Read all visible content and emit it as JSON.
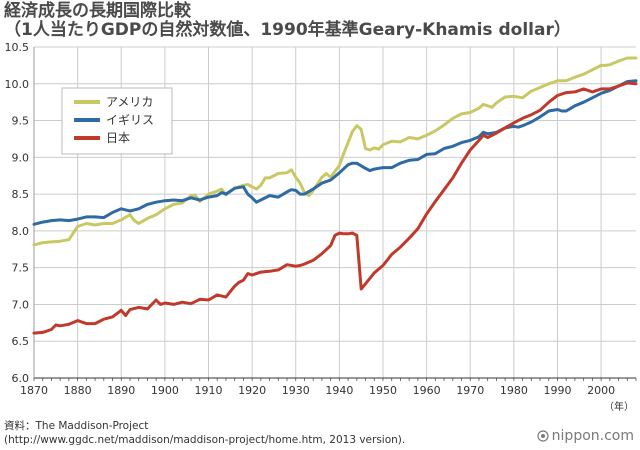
{
  "header": {
    "title": "経済成長の長期国際比較",
    "subtitle": "（1人当たりGDPの自然対数値、1990年基準Geary-Khamis dollar）"
  },
  "chart_data": {
    "type": "line",
    "xlabel_unit": "（年）",
    "xlim": [
      1870,
      2008
    ],
    "ylim": [
      6.0,
      10.5
    ],
    "x_ticks": [
      1870,
      1880,
      1890,
      1900,
      1910,
      1920,
      1930,
      1940,
      1950,
      1960,
      1970,
      1980,
      1990,
      2000
    ],
    "y_ticks": [
      "6.0",
      "6.5",
      "7.0",
      "7.5",
      "8.0",
      "8.5",
      "9.0",
      "9.5",
      "10.0",
      "10.5"
    ],
    "grid": true,
    "legend_position": "top-left",
    "series": [
      {
        "name": "アメリカ",
        "color": "#c8c865",
        "points": [
          [
            1870,
            7.81
          ],
          [
            1872,
            7.84
          ],
          [
            1874,
            7.85
          ],
          [
            1876,
            7.86
          ],
          [
            1878,
            7.88
          ],
          [
            1880,
            8.06
          ],
          [
            1882,
            8.1
          ],
          [
            1884,
            8.08
          ],
          [
            1886,
            8.1
          ],
          [
            1888,
            8.1
          ],
          [
            1890,
            8.15
          ],
          [
            1892,
            8.22
          ],
          [
            1893,
            8.14
          ],
          [
            1894,
            8.1
          ],
          [
            1896,
            8.17
          ],
          [
            1898,
            8.22
          ],
          [
            1900,
            8.3
          ],
          [
            1902,
            8.36
          ],
          [
            1904,
            8.38
          ],
          [
            1906,
            8.48
          ],
          [
            1907,
            8.48
          ],
          [
            1908,
            8.4
          ],
          [
            1910,
            8.5
          ],
          [
            1912,
            8.54
          ],
          [
            1913,
            8.57
          ],
          [
            1914,
            8.49
          ],
          [
            1916,
            8.58
          ],
          [
            1918,
            8.62
          ],
          [
            1919,
            8.63
          ],
          [
            1920,
            8.6
          ],
          [
            1921,
            8.57
          ],
          [
            1922,
            8.62
          ],
          [
            1923,
            8.72
          ],
          [
            1924,
            8.72
          ],
          [
            1926,
            8.78
          ],
          [
            1928,
            8.79
          ],
          [
            1929,
            8.83
          ],
          [
            1930,
            8.73
          ],
          [
            1931,
            8.65
          ],
          [
            1932,
            8.52
          ],
          [
            1933,
            8.48
          ],
          [
            1934,
            8.55
          ],
          [
            1936,
            8.73
          ],
          [
            1937,
            8.78
          ],
          [
            1938,
            8.73
          ],
          [
            1939,
            8.81
          ],
          [
            1940,
            8.89
          ],
          [
            1941,
            9.05
          ],
          [
            1942,
            9.2
          ],
          [
            1943,
            9.35
          ],
          [
            1944,
            9.43
          ],
          [
            1945,
            9.38
          ],
          [
            1946,
            9.12
          ],
          [
            1947,
            9.1
          ],
          [
            1948,
            9.13
          ],
          [
            1949,
            9.11
          ],
          [
            1950,
            9.17
          ],
          [
            1952,
            9.22
          ],
          [
            1954,
            9.21
          ],
          [
            1956,
            9.27
          ],
          [
            1958,
            9.25
          ],
          [
            1960,
            9.3
          ],
          [
            1962,
            9.36
          ],
          [
            1964,
            9.44
          ],
          [
            1966,
            9.53
          ],
          [
            1968,
            9.59
          ],
          [
            1970,
            9.61
          ],
          [
            1972,
            9.67
          ],
          [
            1973,
            9.72
          ],
          [
            1974,
            9.7
          ],
          [
            1975,
            9.68
          ],
          [
            1976,
            9.74
          ],
          [
            1978,
            9.82
          ],
          [
            1980,
            9.83
          ],
          [
            1982,
            9.81
          ],
          [
            1984,
            9.9
          ],
          [
            1986,
            9.95
          ],
          [
            1988,
            10.0
          ],
          [
            1990,
            10.04
          ],
          [
            1992,
            10.04
          ],
          [
            1994,
            10.09
          ],
          [
            1996,
            10.13
          ],
          [
            1998,
            10.19
          ],
          [
            2000,
            10.25
          ],
          [
            2001,
            10.25
          ],
          [
            2002,
            10.26
          ],
          [
            2004,
            10.31
          ],
          [
            2006,
            10.35
          ],
          [
            2008,
            10.35
          ]
        ]
      },
      {
        "name": "イギリス",
        "color": "#2e6aa3",
        "points": [
          [
            1870,
            8.09
          ],
          [
            1872,
            8.12
          ],
          [
            1874,
            8.14
          ],
          [
            1876,
            8.15
          ],
          [
            1878,
            8.14
          ],
          [
            1880,
            8.16
          ],
          [
            1882,
            8.19
          ],
          [
            1884,
            8.19
          ],
          [
            1886,
            8.18
          ],
          [
            1888,
            8.25
          ],
          [
            1890,
            8.3
          ],
          [
            1892,
            8.27
          ],
          [
            1894,
            8.3
          ],
          [
            1896,
            8.36
          ],
          [
            1898,
            8.39
          ],
          [
            1900,
            8.41
          ],
          [
            1902,
            8.42
          ],
          [
            1904,
            8.41
          ],
          [
            1906,
            8.45
          ],
          [
            1908,
            8.42
          ],
          [
            1910,
            8.46
          ],
          [
            1912,
            8.48
          ],
          [
            1913,
            8.52
          ],
          [
            1914,
            8.5
          ],
          [
            1916,
            8.58
          ],
          [
            1918,
            8.6
          ],
          [
            1919,
            8.5
          ],
          [
            1920,
            8.45
          ],
          [
            1921,
            8.39
          ],
          [
            1922,
            8.42
          ],
          [
            1924,
            8.48
          ],
          [
            1926,
            8.46
          ],
          [
            1928,
            8.53
          ],
          [
            1929,
            8.56
          ],
          [
            1930,
            8.55
          ],
          [
            1931,
            8.5
          ],
          [
            1932,
            8.5
          ],
          [
            1934,
            8.57
          ],
          [
            1936,
            8.65
          ],
          [
            1938,
            8.69
          ],
          [
            1940,
            8.79
          ],
          [
            1942,
            8.9
          ],
          [
            1943,
            8.92
          ],
          [
            1944,
            8.92
          ],
          [
            1946,
            8.85
          ],
          [
            1947,
            8.82
          ],
          [
            1948,
            8.84
          ],
          [
            1950,
            8.86
          ],
          [
            1952,
            8.86
          ],
          [
            1954,
            8.92
          ],
          [
            1956,
            8.96
          ],
          [
            1958,
            8.97
          ],
          [
            1960,
            9.04
          ],
          [
            1962,
            9.05
          ],
          [
            1964,
            9.12
          ],
          [
            1966,
            9.15
          ],
          [
            1968,
            9.2
          ],
          [
            1970,
            9.23
          ],
          [
            1972,
            9.28
          ],
          [
            1973,
            9.34
          ],
          [
            1974,
            9.32
          ],
          [
            1976,
            9.34
          ],
          [
            1978,
            9.4
          ],
          [
            1980,
            9.42
          ],
          [
            1981,
            9.41
          ],
          [
            1982,
            9.43
          ],
          [
            1984,
            9.48
          ],
          [
            1986,
            9.55
          ],
          [
            1988,
            9.63
          ],
          [
            1990,
            9.65
          ],
          [
            1991,
            9.63
          ],
          [
            1992,
            9.63
          ],
          [
            1994,
            9.7
          ],
          [
            1996,
            9.75
          ],
          [
            1998,
            9.81
          ],
          [
            2000,
            9.87
          ],
          [
            2002,
            9.91
          ],
          [
            2004,
            9.97
          ],
          [
            2006,
            10.03
          ],
          [
            2008,
            10.04
          ]
        ]
      },
      {
        "name": "日本",
        "color": "#c0392b",
        "points": [
          [
            1870,
            6.61
          ],
          [
            1872,
            6.62
          ],
          [
            1874,
            6.66
          ],
          [
            1875,
            6.72
          ],
          [
            1876,
            6.71
          ],
          [
            1878,
            6.73
          ],
          [
            1880,
            6.78
          ],
          [
            1882,
            6.74
          ],
          [
            1884,
            6.74
          ],
          [
            1886,
            6.8
          ],
          [
            1888,
            6.83
          ],
          [
            1890,
            6.92
          ],
          [
            1891,
            6.85
          ],
          [
            1892,
            6.93
          ],
          [
            1894,
            6.96
          ],
          [
            1896,
            6.94
          ],
          [
            1898,
            7.06
          ],
          [
            1899,
            7.0
          ],
          [
            1900,
            7.02
          ],
          [
            1902,
            7.0
          ],
          [
            1904,
            7.03
          ],
          [
            1906,
            7.01
          ],
          [
            1908,
            7.07
          ],
          [
            1910,
            7.06
          ],
          [
            1912,
            7.13
          ],
          [
            1914,
            7.1
          ],
          [
            1916,
            7.25
          ],
          [
            1917,
            7.3
          ],
          [
            1918,
            7.33
          ],
          [
            1919,
            7.42
          ],
          [
            1920,
            7.4
          ],
          [
            1922,
            7.44
          ],
          [
            1924,
            7.45
          ],
          [
            1926,
            7.47
          ],
          [
            1928,
            7.54
          ],
          [
            1930,
            7.52
          ],
          [
            1931,
            7.53
          ],
          [
            1932,
            7.55
          ],
          [
            1934,
            7.6
          ],
          [
            1936,
            7.69
          ],
          [
            1938,
            7.8
          ],
          [
            1939,
            7.94
          ],
          [
            1940,
            7.97
          ],
          [
            1941,
            7.96
          ],
          [
            1942,
            7.96
          ],
          [
            1943,
            7.97
          ],
          [
            1944,
            7.94
          ],
          [
            1945,
            7.21
          ],
          [
            1946,
            7.28
          ],
          [
            1948,
            7.43
          ],
          [
            1950,
            7.53
          ],
          [
            1952,
            7.68
          ],
          [
            1954,
            7.78
          ],
          [
            1956,
            7.9
          ],
          [
            1958,
            8.03
          ],
          [
            1960,
            8.23
          ],
          [
            1962,
            8.4
          ],
          [
            1964,
            8.56
          ],
          [
            1966,
            8.72
          ],
          [
            1968,
            8.92
          ],
          [
            1970,
            9.1
          ],
          [
            1972,
            9.23
          ],
          [
            1973,
            9.3
          ],
          [
            1974,
            9.27
          ],
          [
            1976,
            9.33
          ],
          [
            1978,
            9.4
          ],
          [
            1980,
            9.47
          ],
          [
            1982,
            9.53
          ],
          [
            1984,
            9.58
          ],
          [
            1986,
            9.64
          ],
          [
            1988,
            9.75
          ],
          [
            1990,
            9.84
          ],
          [
            1992,
            9.88
          ],
          [
            1994,
            9.89
          ],
          [
            1996,
            9.93
          ],
          [
            1998,
            9.89
          ],
          [
            2000,
            9.93
          ],
          [
            2002,
            9.93
          ],
          [
            2004,
            9.97
          ],
          [
            2006,
            10.01
          ],
          [
            2008,
            10.0
          ]
        ]
      }
    ]
  },
  "footer": {
    "source_line1": "資料：The Maddison-Project",
    "source_line2": "(http://www.ggdc.net/maddison/maddison-project/home.htm, 2013 version).",
    "brand": "nippon.com"
  }
}
